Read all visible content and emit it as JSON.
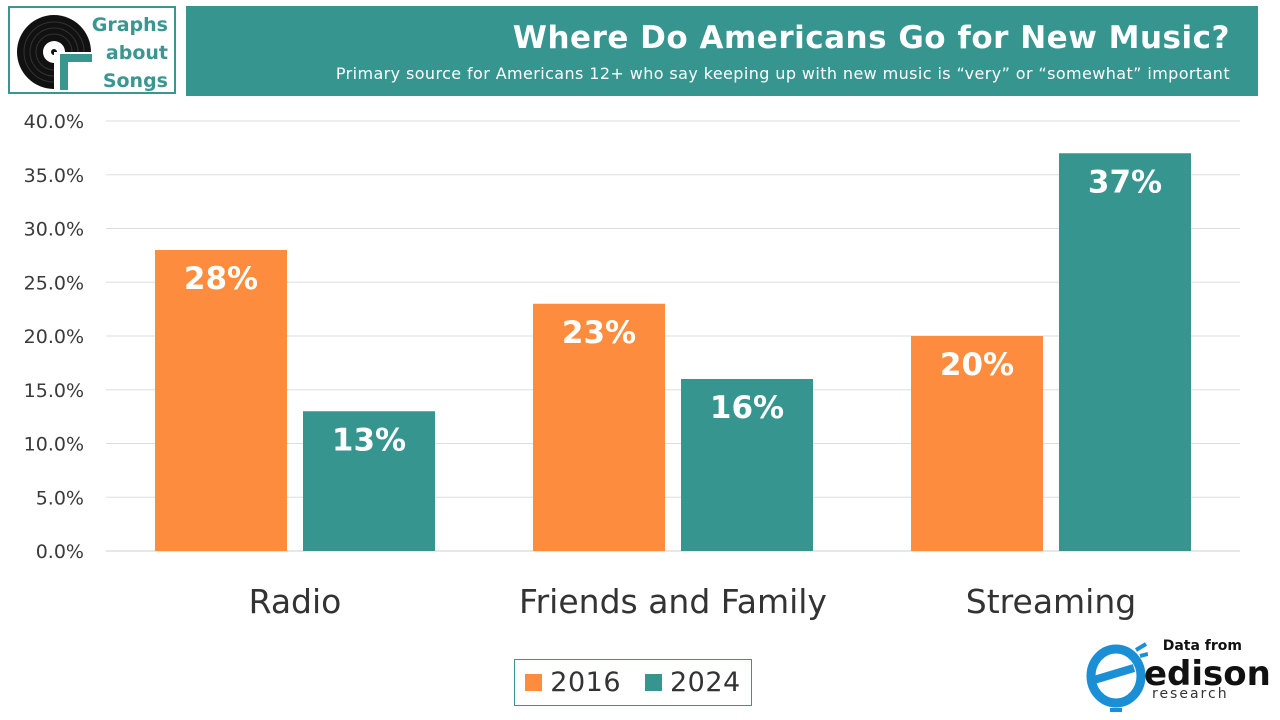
{
  "brand": {
    "logo_lines": [
      "Graphs",
      "about",
      "Songs"
    ],
    "accent_color": "#36958f",
    "icon": "vinyl-record-icon"
  },
  "colors": {
    "series_2016": "#fd8c3e",
    "series_2024": "#36958f"
  },
  "chart_data": {
    "type": "bar",
    "title": "Where Do Americans Go for New Music?",
    "subtitle": "Primary source for Americans 12+ who say keeping up with new music is “very” or “somewhat” important",
    "categories": [
      "Radio",
      "Friends and Family",
      "Streaming"
    ],
    "series": [
      {
        "name": "2016",
        "values": [
          28,
          23,
          20
        ],
        "labels": [
          "28%",
          "23%",
          "20%"
        ]
      },
      {
        "name": "2024",
        "values": [
          13,
          16,
          37
        ],
        "labels": [
          "13%",
          "16%",
          "37%"
        ]
      }
    ],
    "ylim": [
      0,
      40
    ],
    "yticks": [
      "0.0%",
      "5.0%",
      "10.0%",
      "15.0%",
      "20.0%",
      "25.0%",
      "30.0%",
      "35.0%",
      "40.0%"
    ],
    "grid": true,
    "legend_position": "bottom"
  },
  "source": {
    "label": "Data from",
    "name": "edison",
    "sub": "research",
    "icon": "edison-logo-icon"
  }
}
